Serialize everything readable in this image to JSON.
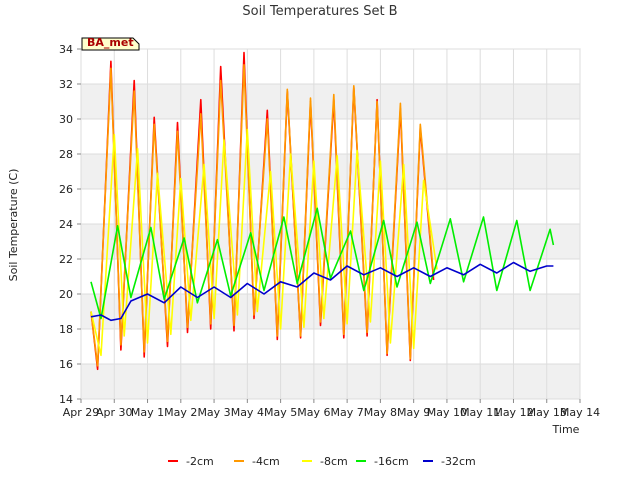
{
  "chart_data": {
    "type": "line",
    "title": "Soil Temperatures Set B",
    "xlabel": "Time",
    "ylabel": "Soil Temperature (C)",
    "badge": "BA_met",
    "xlim": [
      0,
      15
    ],
    "ylim": [
      14,
      34
    ],
    "yticks": [
      14,
      16,
      18,
      20,
      22,
      24,
      26,
      28,
      30,
      32,
      34
    ],
    "xticks": [
      {
        "x": 0,
        "label": "Apr 29"
      },
      {
        "x": 1,
        "label": "Apr 30"
      },
      {
        "x": 2,
        "label": "May 1"
      },
      {
        "x": 3,
        "label": "May 2"
      },
      {
        "x": 4,
        "label": "May 3"
      },
      {
        "x": 5,
        "label": "May 4"
      },
      {
        "x": 6,
        "label": "May 5"
      },
      {
        "x": 7,
        "label": "May 6"
      },
      {
        "x": 8,
        "label": "May 7"
      },
      {
        "x": 9,
        "label": "May 8"
      },
      {
        "x": 10,
        "label": "May 9"
      },
      {
        "x": 11,
        "label": "May 10"
      },
      {
        "x": 12,
        "label": "May 11"
      },
      {
        "x": 13,
        "label": "May 12"
      },
      {
        "x": 14,
        "label": "May 13"
      },
      {
        "x": 15,
        "label": "May 14"
      }
    ],
    "grid": true,
    "legend_position": "bottom",
    "series": [
      {
        "name": "-2cm",
        "color": "#ff0000",
        "x": [
          0.3,
          0.5,
          0.9,
          1.2,
          1.6,
          1.9,
          2.2,
          2.6,
          2.9,
          3.2,
          3.6,
          3.9,
          4.2,
          4.6,
          4.9,
          5.2,
          5.6,
          5.9,
          6.2,
          6.6,
          6.9,
          7.2,
          7.6,
          7.9,
          8.2,
          8.6,
          8.9,
          9.2,
          9.6,
          9.9,
          10.2,
          10.6,
          10.9,
          11.2,
          11.6,
          11.9,
          12.2,
          12.6,
          12.9,
          13.2,
          13.6,
          13.9,
          14.2
        ],
        "values": [
          19.0,
          15.7,
          33.3,
          16.8,
          32.2,
          16.4,
          30.1,
          17.0,
          29.8,
          17.8,
          31.1,
          18.0,
          33.0,
          17.9,
          33.8,
          18.6,
          30.5,
          17.4,
          31.6,
          17.5,
          31.0,
          18.2,
          31.1,
          17.5,
          31.8,
          17.6,
          31.1,
          16.5,
          30.6,
          16.2,
          29.5,
          20.8,
          null,
          null,
          null,
          null,
          null,
          null,
          null,
          null,
          null,
          null,
          null
        ]
      },
      {
        "name": "-4cm",
        "color": "#ff9900",
        "x": [
          0.3,
          0.5,
          0.9,
          1.2,
          1.6,
          1.9,
          2.2,
          2.6,
          2.9,
          3.2,
          3.6,
          3.9,
          4.2,
          4.6,
          4.9,
          5.2,
          5.6,
          5.9,
          6.2,
          6.6,
          6.9,
          7.2,
          7.6,
          7.9,
          8.2,
          8.6,
          8.9,
          9.2,
          9.6,
          9.9,
          10.2,
          10.6,
          10.9,
          11.2,
          11.6,
          11.9,
          12.2,
          12.6,
          12.9,
          13.2,
          13.6,
          13.9,
          14.2
        ],
        "values": [
          19.0,
          15.9,
          32.9,
          17.1,
          31.6,
          16.7,
          29.7,
          17.3,
          29.3,
          18.1,
          30.3,
          18.3,
          32.2,
          18.2,
          33.1,
          18.8,
          30.0,
          17.6,
          31.7,
          17.6,
          31.2,
          18.4,
          31.4,
          17.7,
          31.9,
          17.8,
          31.0,
          16.6,
          30.9,
          16.3,
          29.7,
          21.0,
          null,
          null,
          null,
          null,
          null,
          null,
          null,
          null,
          null,
          null,
          null
        ]
      },
      {
        "name": "-8cm",
        "color": "#ffff00",
        "x": [
          0.3,
          0.6,
          1.0,
          1.3,
          1.7,
          2.0,
          2.3,
          2.7,
          3.0,
          3.3,
          3.7,
          4.0,
          4.3,
          4.7,
          5.0,
          5.3,
          5.7,
          6.0,
          6.3,
          6.7,
          7.0,
          7.3,
          7.7,
          8.0,
          8.3,
          8.7,
          9.0,
          9.3,
          9.7,
          10.0,
          10.3,
          10.7,
          11.0,
          11.3,
          11.7,
          12.0,
          12.3,
          12.7,
          13.0,
          13.3,
          13.7,
          14.0,
          14.2
        ],
        "values": [
          19.0,
          16.5,
          29.1,
          17.6,
          28.3,
          17.2,
          26.9,
          17.7,
          26.6,
          18.5,
          27.4,
          18.6,
          28.8,
          18.8,
          29.4,
          19.0,
          27.0,
          18.0,
          28.0,
          18.1,
          27.6,
          18.6,
          27.9,
          18.3,
          28.2,
          18.4,
          27.6,
          17.2,
          27.4,
          16.9,
          26.5,
          21.4,
          null,
          null,
          null,
          null,
          null,
          null,
          null,
          null,
          null,
          null,
          null
        ]
      },
      {
        "name": "-16cm",
        "color": "#00ee00",
        "x": [
          0.3,
          0.6,
          1.1,
          1.5,
          2.1,
          2.5,
          3.1,
          3.5,
          4.1,
          4.5,
          5.1,
          5.5,
          6.1,
          6.5,
          7.1,
          7.5,
          8.1,
          8.5,
          9.1,
          9.5,
          10.1,
          10.5,
          11.1,
          11.5,
          12.1,
          12.5,
          13.1,
          13.5,
          14.1,
          14.2
        ],
        "values": [
          20.7,
          18.6,
          23.9,
          19.8,
          23.8,
          19.7,
          23.2,
          19.5,
          23.1,
          19.9,
          23.5,
          20.2,
          24.4,
          20.6,
          24.9,
          20.9,
          23.6,
          20.2,
          24.2,
          20.4,
          24.1,
          20.6,
          24.3,
          20.7,
          24.4,
          20.2,
          24.2,
          20.2,
          23.7,
          22.8
        ]
      },
      {
        "name": "-32cm",
        "color": "#0000cc",
        "x": [
          0.3,
          0.6,
          0.9,
          1.2,
          1.5,
          2.0,
          2.5,
          3.0,
          3.5,
          4.0,
          4.5,
          5.0,
          5.5,
          6.0,
          6.5,
          7.0,
          7.5,
          8.0,
          8.5,
          9.0,
          9.5,
          10.0,
          10.5,
          11.0,
          11.5,
          12.0,
          12.5,
          13.0,
          13.5,
          14.0,
          14.2
        ],
        "values": [
          18.7,
          18.8,
          18.5,
          18.6,
          19.6,
          20.0,
          19.5,
          20.4,
          19.8,
          20.4,
          19.8,
          20.6,
          20.0,
          20.7,
          20.4,
          21.2,
          20.8,
          21.6,
          21.1,
          21.5,
          21.0,
          21.5,
          21.0,
          21.5,
          21.1,
          21.7,
          21.2,
          21.8,
          21.3,
          21.6,
          21.6
        ]
      }
    ]
  }
}
